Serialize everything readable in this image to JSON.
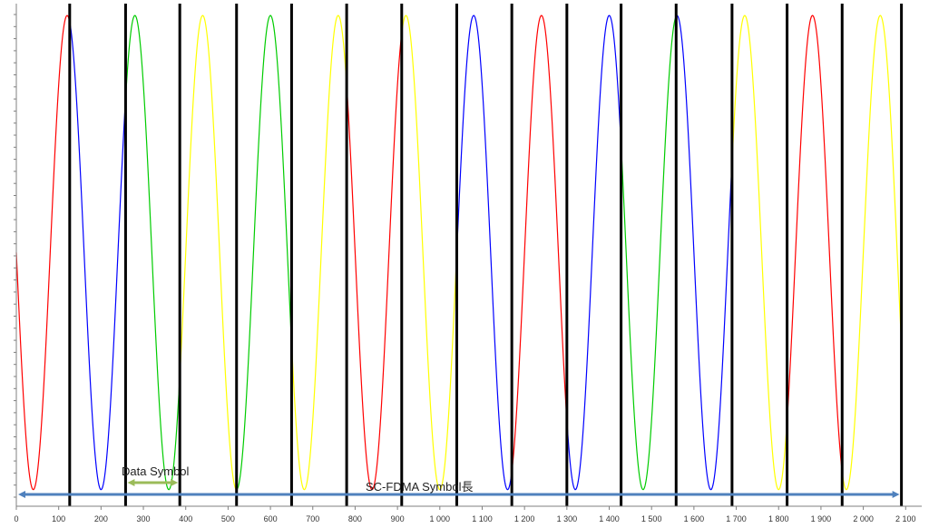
{
  "chart_data": {
    "type": "line",
    "title": "",
    "xlabel": "",
    "ylabel": "",
    "xlim": [
      0,
      2100
    ],
    "ylim": [
      -1.07,
      1.05
    ],
    "x_ticks": [
      0,
      100,
      200,
      300,
      400,
      500,
      600,
      700,
      800,
      900,
      1000,
      1100,
      1200,
      1300,
      1400,
      1500,
      1600,
      1700,
      1800,
      1900,
      2000,
      2100
    ],
    "x_tick_labels": [
      "0",
      "100",
      "200",
      "300",
      "400",
      "500",
      "600",
      "700",
      "800",
      "900",
      "1 000",
      "1 100",
      "1 200",
      "1 300",
      "1 400",
      "1 500",
      "1 600",
      "1 700",
      "1 800",
      "1 900",
      "2 000",
      "2 100"
    ],
    "grid": false,
    "waveform": {
      "description_free_params": true,
      "amplitude": 1,
      "period": 160,
      "peak_at": 120,
      "x_range": [
        0,
        2100
      ]
    },
    "symbol_boundaries": [
      126,
      258,
      386,
      520,
      650,
      780,
      910,
      1040,
      1170,
      1300,
      1428,
      1558,
      1690,
      1820,
      1950,
      2090
    ],
    "segments": [
      {
        "x": [
          0,
          126
        ],
        "color": "#ff0000"
      },
      {
        "x": [
          126,
          258
        ],
        "color": "#0000ff"
      },
      {
        "x": [
          258,
          386
        ],
        "color": "#00cc00"
      },
      {
        "x": [
          386,
          520
        ],
        "color": "#ffff00"
      },
      {
        "x": [
          520,
          650
        ],
        "color": "#00cc00"
      },
      {
        "x": [
          650,
          780
        ],
        "color": "#ffff00"
      },
      {
        "x": [
          780,
          910
        ],
        "color": "#ff0000"
      },
      {
        "x": [
          910,
          1040
        ],
        "color": "#ffff00"
      },
      {
        "x": [
          1040,
          1170
        ],
        "color": "#0000ff"
      },
      {
        "x": [
          1170,
          1300
        ],
        "color": "#ff0000"
      },
      {
        "x": [
          1300,
          1428
        ],
        "color": "#0000ff"
      },
      {
        "x": [
          1428,
          1558
        ],
        "color": "#00cc00"
      },
      {
        "x": [
          1558,
          1690
        ],
        "color": "#0000ff"
      },
      {
        "x": [
          1690,
          1820
        ],
        "color": "#ffff00"
      },
      {
        "x": [
          1820,
          1950
        ],
        "color": "#ff0000"
      },
      {
        "x": [
          1950,
          2090
        ],
        "color": "#ffff00"
      }
    ],
    "annotations": [
      {
        "text": "Data Symbol",
        "arrow_from": 258,
        "arrow_to": 386,
        "color": "#9bbb59"
      },
      {
        "text": "SC-FDMA Symbol長",
        "arrow_from": 0,
        "arrow_to": 2090,
        "color": "#4f81bd"
      }
    ]
  }
}
